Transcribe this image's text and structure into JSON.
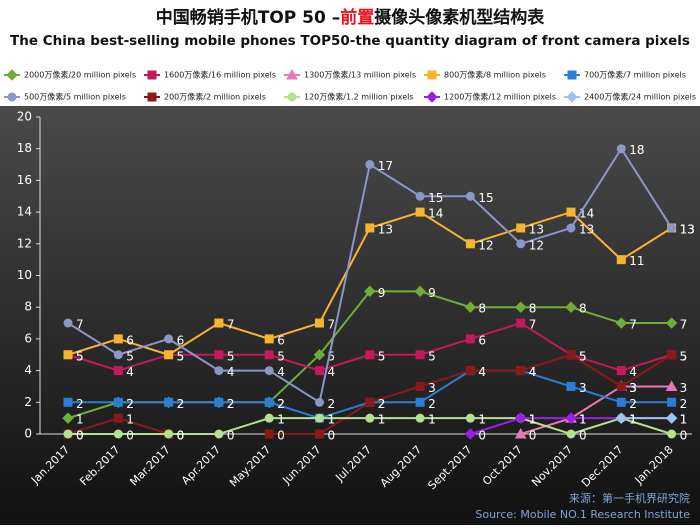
{
  "chart_data": {
    "type": "line",
    "title_parts": [
      "中国畅销手机TOP 50 –",
      "前置",
      "摄像头像素机型结构表"
    ],
    "title_colors": [
      "#111111",
      "#e8141c",
      "#111111"
    ],
    "subtitle": "The China best-selling mobile phones TOP50-the quantity diagram of front camera pixels",
    "categories": [
      "Jan.2017",
      "Feb.2017",
      "Mar.2017",
      "Apr.2017",
      "May.2017",
      "Jun.2017",
      "Jul.2017",
      "Aug.2017",
      "Sept.2017",
      "Oct.2017",
      "Nov.2017",
      "Dec.2017",
      "Jan.2018"
    ],
    "ylim": [
      0,
      20
    ],
    "yticks": [
      0,
      2,
      4,
      6,
      8,
      10,
      12,
      14,
      16,
      18,
      20
    ],
    "grid": false,
    "series": [
      {
        "name": "2000万像素/20 million pixels",
        "color": "#6fae3a",
        "marker": "diamond",
        "values": [
          1,
          2,
          2,
          2,
          2,
          5,
          9,
          9,
          8,
          8,
          8,
          7,
          7
        ]
      },
      {
        "name": "1600万像素/16 million pixels",
        "color": "#c4195a",
        "marker": "square",
        "values": [
          5,
          4,
          5,
          5,
          5,
          4,
          5,
          5,
          6,
          7,
          5,
          4,
          5
        ]
      },
      {
        "name": "1300万像素/13 million pixels",
        "color": "#e878b4",
        "marker": "triangle",
        "values": [
          null,
          null,
          null,
          null,
          null,
          null,
          null,
          null,
          null,
          0,
          1,
          3,
          3
        ]
      },
      {
        "name": "800万像素/8 million pixels",
        "color": "#f6b530",
        "marker": "square",
        "values": [
          5,
          6,
          5,
          7,
          6,
          7,
          13,
          14,
          12,
          13,
          14,
          11,
          13
        ]
      },
      {
        "name": "700万像素/7 million pixels",
        "color": "#2a7fd4",
        "marker": "square",
        "values": [
          2,
          2,
          2,
          2,
          2,
          1,
          2,
          2,
          4,
          4,
          3,
          2,
          2
        ]
      },
      {
        "name": "500万像素/5 million pixels",
        "color": "#8c96c8",
        "marker": "circle",
        "values": [
          7,
          5,
          6,
          4,
          4,
          2,
          17,
          15,
          15,
          12,
          13,
          18,
          13
        ]
      },
      {
        "name": "200万像素/2 million pixels",
        "color": "#8a1a1a",
        "marker": "square",
        "values": [
          0,
          1,
          0,
          null,
          0,
          0,
          2,
          3,
          4,
          4,
          5,
          3,
          5
        ]
      },
      {
        "name": "120万像素/1.2 million pixels",
        "color": "#b6e08e",
        "marker": "circle",
        "values": [
          0,
          0,
          0,
          0,
          1,
          1,
          1,
          1,
          1,
          1,
          0,
          1,
          0
        ]
      },
      {
        "name": "1200万像素/12 million pixels",
        "color": "#9b1ee6",
        "marker": "diamond",
        "values": [
          null,
          null,
          null,
          null,
          null,
          null,
          null,
          null,
          0,
          1,
          1,
          1,
          1
        ]
      },
      {
        "name": "2400万像素/24 million pixels",
        "color": "#9cc4ee",
        "marker": "diamond",
        "values": [
          null,
          null,
          null,
          null,
          null,
          null,
          null,
          null,
          null,
          null,
          null,
          1,
          1
        ]
      }
    ],
    "source_cn": "来源：第一手机界研究院",
    "source_en": "Source: Mobile NO.1 Research Institute"
  }
}
